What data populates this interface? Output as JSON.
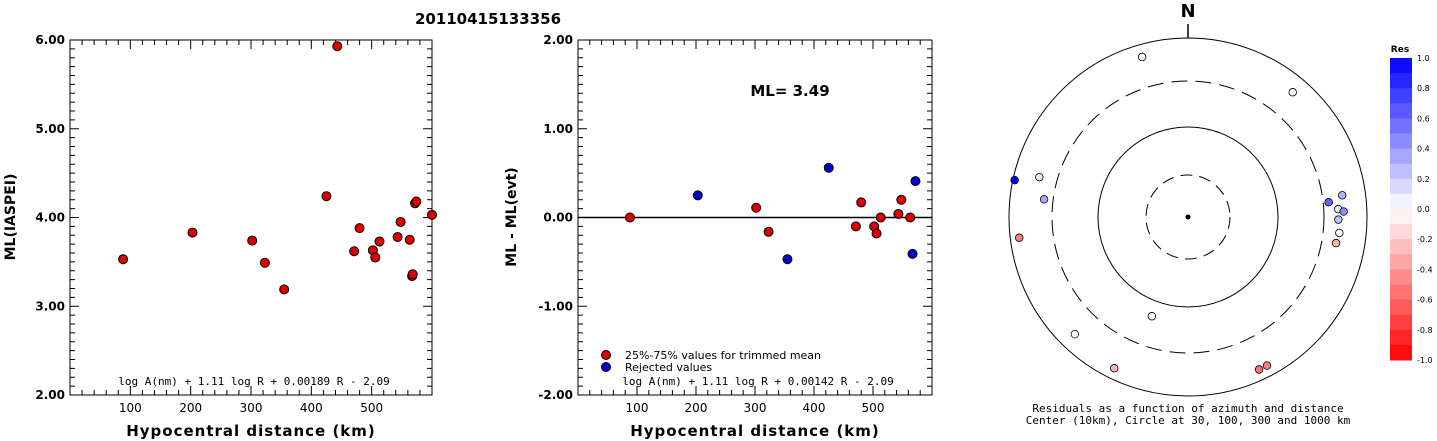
{
  "title": "20110415133356",
  "chart_data": [
    {
      "type": "scatter",
      "ylabel": "ML(IASPEI)",
      "xlabel": "Hypocentral distance (km)",
      "xlim": [
        0,
        600
      ],
      "ylim": [
        2.0,
        6.0
      ],
      "x_ticks": [
        100,
        200,
        300,
        400,
        500
      ],
      "y_ticks": [
        "2.00",
        "3.00",
        "4.00",
        "5.00",
        "6.00"
      ],
      "formula": "log A(nm) + 1.11 log R + 0.00189 R - 2.09",
      "point_color": "#dd0000",
      "points": [
        {
          "x": 88,
          "y": 3.53
        },
        {
          "x": 203,
          "y": 3.83
        },
        {
          "x": 302,
          "y": 3.74
        },
        {
          "x": 323,
          "y": 3.49
        },
        {
          "x": 355,
          "y": 3.19
        },
        {
          "x": 425,
          "y": 4.24
        },
        {
          "x": 443,
          "y": 5.93
        },
        {
          "x": 471,
          "y": 3.62
        },
        {
          "x": 480,
          "y": 3.88
        },
        {
          "x": 502,
          "y": 3.63
        },
        {
          "x": 506,
          "y": 3.55
        },
        {
          "x": 513,
          "y": 3.73
        },
        {
          "x": 543,
          "y": 3.78
        },
        {
          "x": 548,
          "y": 3.95
        },
        {
          "x": 563,
          "y": 3.75
        },
        {
          "x": 567,
          "y": 3.34
        },
        {
          "x": 568,
          "y": 3.36
        },
        {
          "x": 572,
          "y": 4.16
        },
        {
          "x": 574,
          "y": 4.18
        },
        {
          "x": 600,
          "y": 4.03
        }
      ]
    },
    {
      "type": "scatter",
      "ylabel": "ML - ML(evt)",
      "xlabel": "Hypocentral distance (km)",
      "xlim": [
        0,
        600
      ],
      "ylim": [
        -2.0,
        2.0
      ],
      "x_ticks": [
        100,
        200,
        300,
        400,
        500
      ],
      "y_ticks": [
        "-2.00",
        "-1.00",
        "0.00",
        "1.00",
        "2.00"
      ],
      "annotation": "ML= 3.49",
      "formula": "log A(nm) + 1.11 log R + 0.00142 R - 2.09",
      "legend": [
        {
          "label": "25%-75% values for trimmed mean",
          "color": "#dd0000"
        },
        {
          "label": "Rejected values",
          "color": "#0000cc"
        }
      ],
      "points": [
        {
          "x": 88,
          "y": 0.0,
          "group": 0
        },
        {
          "x": 203,
          "y": 0.25,
          "group": 1
        },
        {
          "x": 302,
          "y": 0.11,
          "group": 0
        },
        {
          "x": 323,
          "y": -0.16,
          "group": 0
        },
        {
          "x": 355,
          "y": -0.47,
          "group": 1
        },
        {
          "x": 425,
          "y": 0.56,
          "group": 1
        },
        {
          "x": 471,
          "y": -0.1,
          "group": 0
        },
        {
          "x": 480,
          "y": 0.17,
          "group": 0
        },
        {
          "x": 502,
          "y": -0.1,
          "group": 0
        },
        {
          "x": 506,
          "y": -0.18,
          "group": 0
        },
        {
          "x": 513,
          "y": 0.0,
          "group": 0
        },
        {
          "x": 543,
          "y": 0.04,
          "group": 0
        },
        {
          "x": 548,
          "y": 0.2,
          "group": 0
        },
        {
          "x": 563,
          "y": 0.0,
          "group": 0
        },
        {
          "x": 567,
          "y": -0.41,
          "group": 1
        },
        {
          "x": 572,
          "y": 0.41,
          "group": 1
        }
      ]
    },
    {
      "type": "polar-scatter",
      "north_label": "N",
      "caption_line1": "Residuals as a function of azimuth and distance",
      "caption_line2": "Center (10km), Circle at 30, 100, 300 and 1000 km",
      "colorbar_title": "Res",
      "colorbar_ticks": [
        "1.0",
        "0.8",
        "0.6",
        "0.4",
        "0.2",
        "0.0",
        "-0.2",
        "-0.4",
        "-0.6",
        "-0.8",
        "-1.0"
      ],
      "points": [
        {
          "azimuth": 344,
          "dist_frac": 0.93,
          "res": 0.0
        },
        {
          "azimuth": 40,
          "dist_frac": 0.91,
          "res": 0.0
        },
        {
          "azimuth": 285,
          "dist_frac": 0.86,
          "res": -0.1
        },
        {
          "azimuth": 282,
          "dist_frac": 0.99,
          "res": 1.0
        },
        {
          "azimuth": 277,
          "dist_frac": 0.81,
          "res": 0.35
        },
        {
          "azimuth": 263,
          "dist_frac": 0.95,
          "res": -0.5
        },
        {
          "azimuth": 84,
          "dist_frac": 0.79,
          "res": 0.6
        },
        {
          "azimuth": 82,
          "dist_frac": 0.87,
          "res": 0.3
        },
        {
          "azimuth": 87,
          "dist_frac": 0.84,
          "res": 0.1
        },
        {
          "azimuth": 88,
          "dist_frac": 0.87,
          "res": 0.45
        },
        {
          "azimuth": 91,
          "dist_frac": 0.84,
          "res": 0.25
        },
        {
          "azimuth": 96,
          "dist_frac": 0.85,
          "res": 0.0
        },
        {
          "azimuth": 100,
          "dist_frac": 0.84,
          "res": -0.3
        },
        {
          "azimuth": 155,
          "dist_frac": 0.94,
          "res": -0.55
        },
        {
          "azimuth": 152,
          "dist_frac": 0.94,
          "res": -0.5
        },
        {
          "azimuth": 206,
          "dist_frac": 0.94,
          "res": -0.3
        },
        {
          "azimuth": 224,
          "dist_frac": 0.91,
          "res": 0.0
        },
        {
          "azimuth": 200,
          "dist_frac": 0.59,
          "res": 0.0
        }
      ]
    }
  ]
}
